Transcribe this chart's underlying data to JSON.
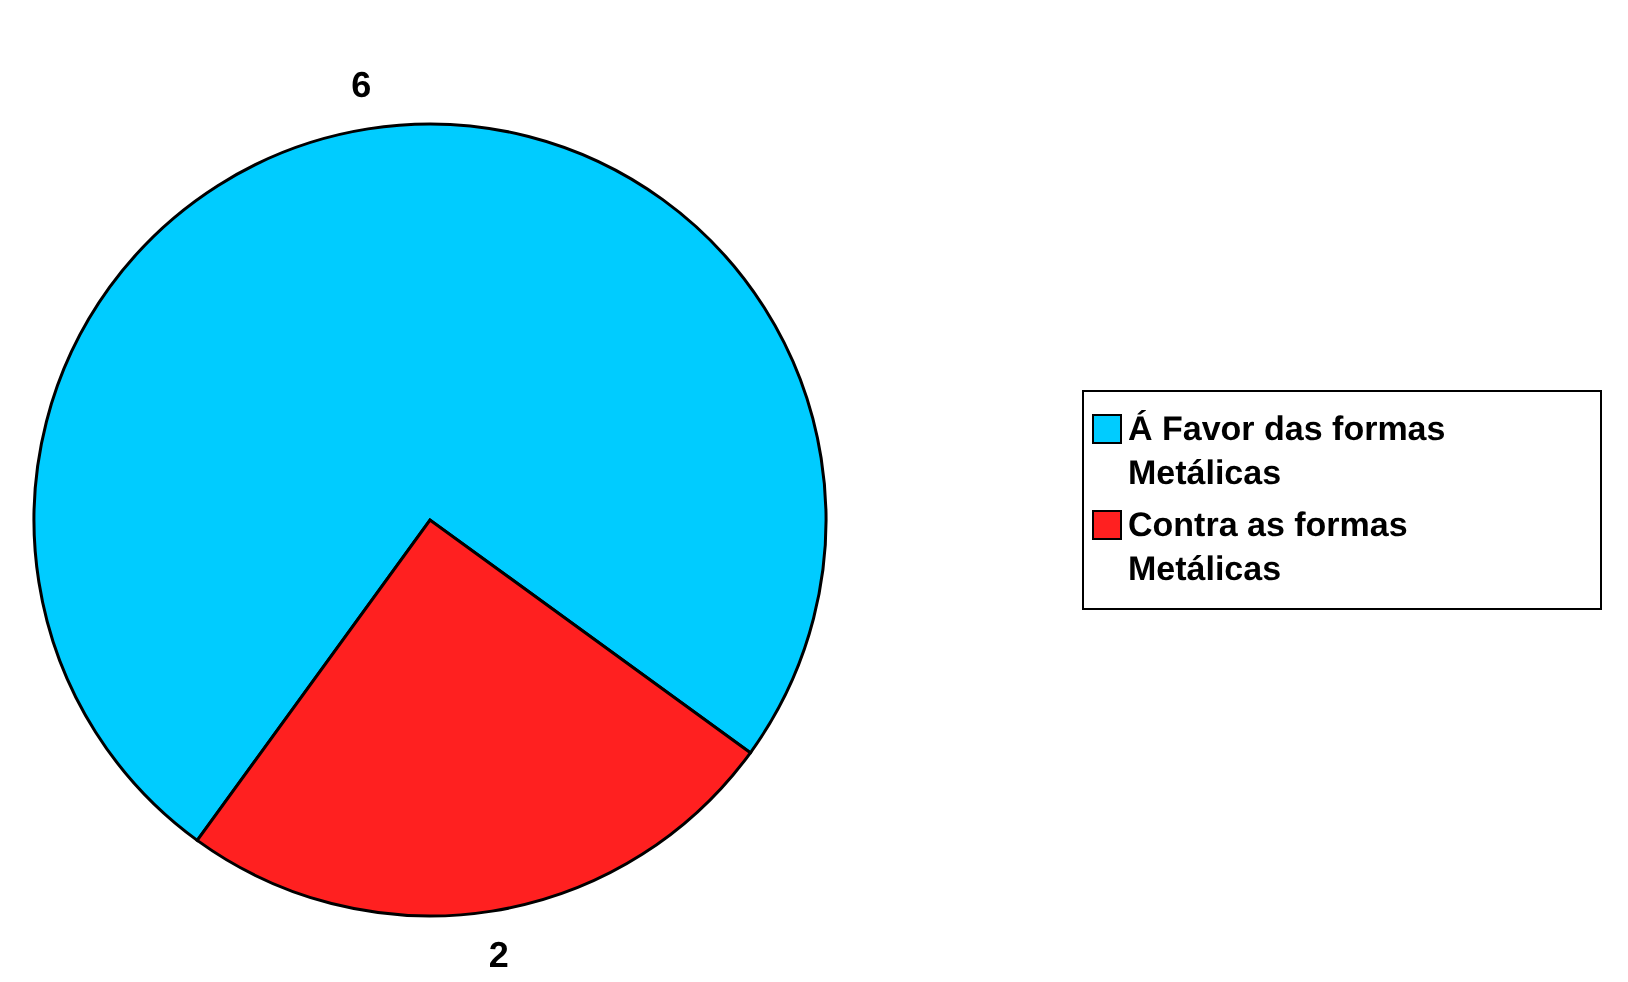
{
  "chart_data": {
    "type": "pie",
    "categories": [
      "Á Favor das formas Metálicas",
      "Contra as formas Metálicas"
    ],
    "values": [
      6,
      2
    ],
    "colors": [
      "#00ccff",
      "#ff2020"
    ],
    "data_labels": true,
    "legend": "right"
  }
}
